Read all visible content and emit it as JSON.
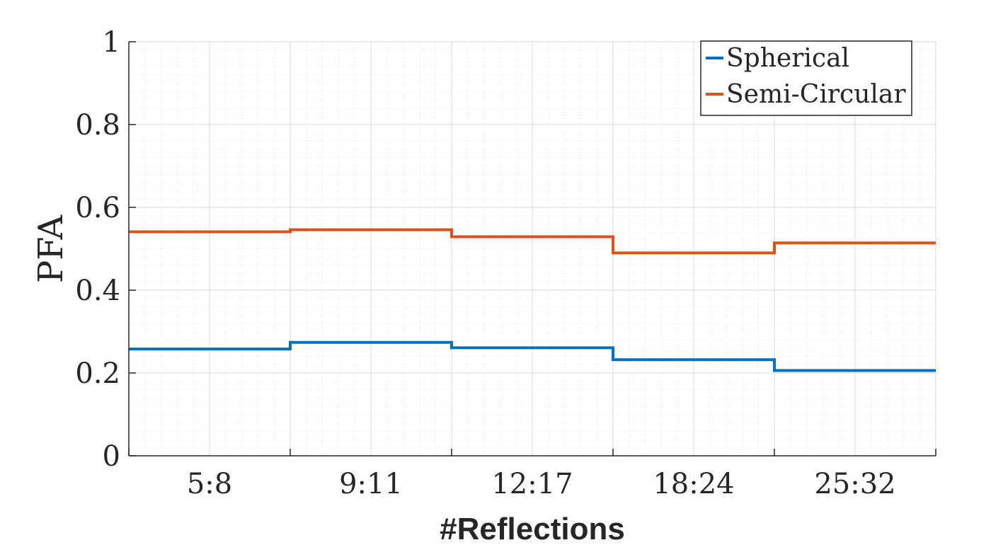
{
  "chart_data": {
    "type": "line",
    "step": true,
    "title": "",
    "xlabel": "#Reflections",
    "ylabel": "PFA",
    "categories": [
      "5:8",
      "9:11",
      "12:17",
      "18:24",
      "25:32"
    ],
    "ylim": [
      0,
      1
    ],
    "yticks": [
      "0",
      "0.2",
      "0.4",
      "0.6",
      "0.8",
      "1"
    ],
    "grid": true,
    "minor_grid": true,
    "legend_position": "top-right",
    "series": [
      {
        "name": "Spherical",
        "color": "#0072BD",
        "values": [
          0.258,
          0.274,
          0.261,
          0.232,
          0.206
        ]
      },
      {
        "name": "Semi-Circular",
        "color": "#D95319",
        "values": [
          0.541,
          0.546,
          0.529,
          0.49,
          0.514
        ]
      }
    ]
  }
}
